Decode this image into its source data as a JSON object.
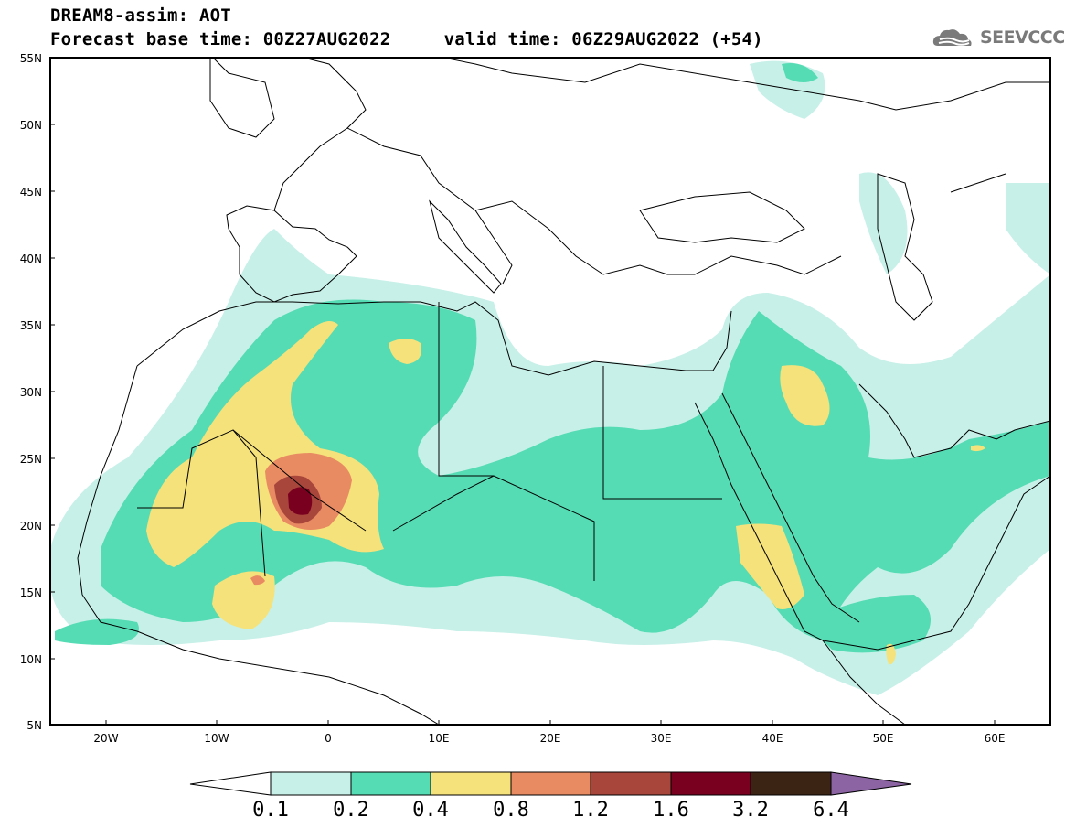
{
  "header": {
    "title_line1": "DREAM8-assim: AOT",
    "title_line2": "Forecast base time: 00Z27AUG2022     valid time: 06Z29AUG2022 (+54)"
  },
  "logo": {
    "text": "SEEVCCC",
    "icon": "cloud-icon"
  },
  "map": {
    "lat_labels": [
      "55N",
      "50N",
      "45N",
      "40N",
      "35N",
      "30N",
      "25N",
      "20N",
      "15N",
      "10N",
      "5N"
    ],
    "lon_labels": [
      "20W",
      "10W",
      "0",
      "10E",
      "20E",
      "30E",
      "40E",
      "50E",
      "60E"
    ],
    "region": {
      "lon_min": -25,
      "lon_max": 65,
      "lat_min": 5,
      "lat_max": 55
    }
  },
  "colorbar": {
    "levels": [
      "0.1",
      "0.2",
      "0.4",
      "0.8",
      "1.2",
      "1.6",
      "3.2",
      "6.4"
    ],
    "colors": [
      "#ffffff",
      "#c7f0e8",
      "#55dcb4",
      "#f5e27a",
      "#e88a62",
      "#a8463c",
      "#7a0020",
      "#3c2414",
      "#8c64a4"
    ],
    "color_names": [
      "under-0.1",
      "0.1-0.2",
      "0.2-0.4",
      "0.4-0.8",
      "0.8-1.2",
      "1.2-1.6",
      "1.6-3.2",
      "3.2-6.4",
      "over-6.4"
    ]
  }
}
